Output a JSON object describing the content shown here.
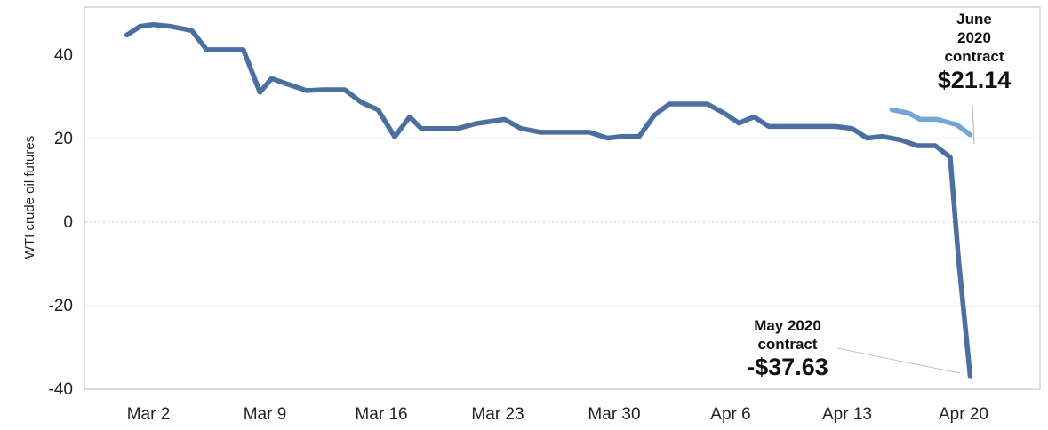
{
  "chart_data": {
    "type": "line",
    "ylabel": "WTI crude oil futures",
    "xlabel": "",
    "title": "",
    "ylim": [
      -42,
      50
    ],
    "yticks": [
      40,
      20,
      0,
      -20,
      -40
    ],
    "x_ticks": [
      {
        "label": "Mar 2",
        "day": 0
      },
      {
        "label": "Mar 9",
        "day": 7
      },
      {
        "label": "Mar 16",
        "day": 14
      },
      {
        "label": "Mar 23",
        "day": 21
      },
      {
        "label": "Mar 30",
        "day": 28
      },
      {
        "label": "Apr 6",
        "day": 35
      },
      {
        "label": "Apr 13",
        "day": 42
      },
      {
        "label": "Apr 20",
        "day": 49
      }
    ],
    "grid": "horizontal",
    "series": [
      {
        "name": "May 2020 contract",
        "color": "#4a6fa0",
        "points": [
          [
            -1.3,
            44.8
          ],
          [
            -0.5,
            46.9
          ],
          [
            0.3,
            47.3
          ],
          [
            1.3,
            46.9
          ],
          [
            2.6,
            45.9
          ],
          [
            3.5,
            41.3
          ],
          [
            4.5,
            41.3
          ],
          [
            5.7,
            41.3
          ],
          [
            6.7,
            31.1
          ],
          [
            7.4,
            34.4
          ],
          [
            8.4,
            33.0
          ],
          [
            9.5,
            31.5
          ],
          [
            10.5,
            31.7
          ],
          [
            11.8,
            31.7
          ],
          [
            12.8,
            28.7
          ],
          [
            13.8,
            26.9
          ],
          [
            14.8,
            20.4
          ],
          [
            15.7,
            25.2
          ],
          [
            16.4,
            22.4
          ],
          [
            17.4,
            22.4
          ],
          [
            18.6,
            22.4
          ],
          [
            19.7,
            23.6
          ],
          [
            21.4,
            24.6
          ],
          [
            22.4,
            22.4
          ],
          [
            23.6,
            21.5
          ],
          [
            25.1,
            21.5
          ],
          [
            26.5,
            21.5
          ],
          [
            27.6,
            20.1
          ],
          [
            28.5,
            20.5
          ],
          [
            29.5,
            20.5
          ],
          [
            30.4,
            25.5
          ],
          [
            31.3,
            28.3
          ],
          [
            32.4,
            28.3
          ],
          [
            33.6,
            28.3
          ],
          [
            34.6,
            26.1
          ],
          [
            35.5,
            23.7
          ],
          [
            36.4,
            25.2
          ],
          [
            37.3,
            22.9
          ],
          [
            38.5,
            22.9
          ],
          [
            40.0,
            22.9
          ],
          [
            41.3,
            22.9
          ],
          [
            42.3,
            22.4
          ],
          [
            43.2,
            20.1
          ],
          [
            44.1,
            20.5
          ],
          [
            45.2,
            19.7
          ],
          [
            46.2,
            18.3
          ],
          [
            47.3,
            18.3
          ],
          [
            48.2,
            15.5
          ],
          [
            48.7,
            -9.0
          ],
          [
            49.4,
            -37.0
          ]
        ]
      },
      {
        "name": "June 2020 contract",
        "color": "#74a6d4",
        "points": [
          [
            44.7,
            26.9
          ],
          [
            45.7,
            26.1
          ],
          [
            46.4,
            24.6
          ],
          [
            47.4,
            24.6
          ],
          [
            48.6,
            23.3
          ],
          [
            49.4,
            20.9
          ]
        ]
      }
    ],
    "annotations": [
      {
        "lines": [
          "June",
          "2020",
          "contract"
        ],
        "value": "$21.14"
      },
      {
        "lines": [
          "May 2020",
          "contract"
        ],
        "value": "-$37.63"
      }
    ]
  }
}
